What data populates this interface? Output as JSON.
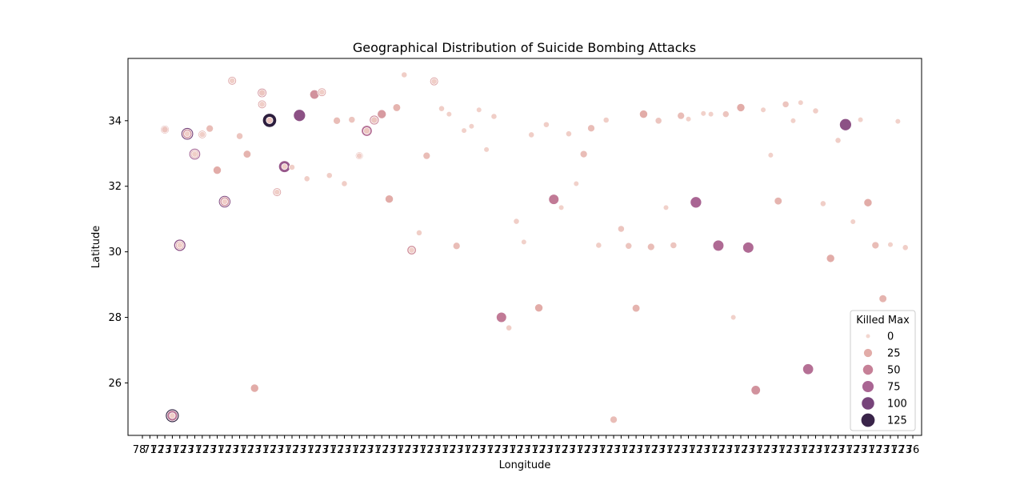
{
  "chart_data": {
    "type": "scatter",
    "title": "Geographical Distribution of Suicide Bombing Attacks",
    "xlabel": "Longitude",
    "ylabel": "Latitude",
    "ylim": [
      24.4,
      35.9
    ],
    "yticks": [
      26,
      28,
      30,
      32,
      34
    ],
    "x_axis": "categorical",
    "x_first_tick_label": "78",
    "x_last_tick_label": "76",
    "x_category_count": 104,
    "size_legend": {
      "title": "Killed Max",
      "entries": [
        {
          "label": "0",
          "value": 0
        },
        {
          "label": "25",
          "value": 25
        },
        {
          "label": "50",
          "value": 50
        },
        {
          "label": "75",
          "value": 75
        },
        {
          "label": "100",
          "value": 100
        },
        {
          "label": "125",
          "value": 125
        }
      ],
      "placement": "lower right"
    },
    "color_low": "#f3d6cf",
    "color_high": "#2d1e3e",
    "grid": false,
    "points": [
      {
        "x": 3,
        "y": 33.73,
        "k": 30
      },
      {
        "x": 3,
        "y": 33.73,
        "k": 10
      },
      {
        "x": 4,
        "y": 25.0,
        "k": 130
      },
      {
        "x": 4,
        "y": 25.0,
        "k": 60
      },
      {
        "x": 4,
        "y": 25.0,
        "k": 5
      },
      {
        "x": 5,
        "y": 30.2,
        "k": 90
      },
      {
        "x": 5,
        "y": 30.2,
        "k": 30
      },
      {
        "x": 5,
        "y": 30.2,
        "k": 5
      },
      {
        "x": 6,
        "y": 33.6,
        "k": 100
      },
      {
        "x": 6,
        "y": 33.6,
        "k": 40
      },
      {
        "x": 6,
        "y": 33.6,
        "k": 5
      },
      {
        "x": 7,
        "y": 32.98,
        "k": 80
      },
      {
        "x": 7,
        "y": 32.98,
        "k": 30
      },
      {
        "x": 7,
        "y": 32.98,
        "k": 5
      },
      {
        "x": 8,
        "y": 33.58,
        "k": 25
      },
      {
        "x": 8,
        "y": 33.58,
        "k": 5
      },
      {
        "x": 9,
        "y": 33.76,
        "k": 15
      },
      {
        "x": 10,
        "y": 32.49,
        "k": 25
      },
      {
        "x": 11,
        "y": 31.53,
        "k": 95
      },
      {
        "x": 11,
        "y": 31.53,
        "k": 40
      },
      {
        "x": 11,
        "y": 31.53,
        "k": 5
      },
      {
        "x": 12,
        "y": 35.22,
        "k": 30
      },
      {
        "x": 12,
        "y": 35.22,
        "k": 5
      },
      {
        "x": 13,
        "y": 33.53,
        "k": 10
      },
      {
        "x": 14,
        "y": 32.98,
        "k": 20
      },
      {
        "x": 15,
        "y": 25.84,
        "k": 25
      },
      {
        "x": 16,
        "y": 34.85,
        "k": 40
      },
      {
        "x": 16,
        "y": 34.85,
        "k": 10
      },
      {
        "x": 16,
        "y": 34.5,
        "k": 30
      },
      {
        "x": 16,
        "y": 34.5,
        "k": 5
      },
      {
        "x": 17,
        "y": 34.01,
        "k": 140
      },
      {
        "x": 17,
        "y": 34.01,
        "k": 10
      },
      {
        "x": 18,
        "y": 31.82,
        "k": 30
      },
      {
        "x": 18,
        "y": 31.82,
        "k": 5
      },
      {
        "x": 19,
        "y": 32.6,
        "k": 85
      },
      {
        "x": 19,
        "y": 32.6,
        "k": 5
      },
      {
        "x": 20,
        "y": 32.58,
        "k": 5
      },
      {
        "x": 21,
        "y": 34.16,
        "k": 90
      },
      {
        "x": 22,
        "y": 32.23,
        "k": 5
      },
      {
        "x": 23,
        "y": 34.8,
        "k": 40
      },
      {
        "x": 24,
        "y": 34.87,
        "k": 30
      },
      {
        "x": 24,
        "y": 34.87,
        "k": 5
      },
      {
        "x": 25,
        "y": 32.33,
        "k": 10
      },
      {
        "x": 25,
        "y": 32.33,
        "k": 5
      },
      {
        "x": 26,
        "y": 34.0,
        "k": 15
      },
      {
        "x": 27,
        "y": 32.08,
        "k": 5
      },
      {
        "x": 28,
        "y": 34.03,
        "k": 10
      },
      {
        "x": 29,
        "y": 32.93,
        "k": 20
      },
      {
        "x": 29,
        "y": 32.93,
        "k": 5
      },
      {
        "x": 30,
        "y": 33.69,
        "k": 65
      },
      {
        "x": 30,
        "y": 33.69,
        "k": 10
      },
      {
        "x": 31,
        "y": 34.02,
        "k": 45
      },
      {
        "x": 31,
        "y": 34.02,
        "k": 10
      },
      {
        "x": 32,
        "y": 34.2,
        "k": 35
      },
      {
        "x": 33,
        "y": 31.61,
        "k": 25
      },
      {
        "x": 34,
        "y": 34.4,
        "k": 20
      },
      {
        "x": 35,
        "y": 35.4,
        "k": 5
      },
      {
        "x": 36,
        "y": 30.05,
        "k": 40
      },
      {
        "x": 36,
        "y": 30.05,
        "k": 5
      },
      {
        "x": 37,
        "y": 30.58,
        "k": 5
      },
      {
        "x": 38,
        "y": 32.93,
        "k": 15
      },
      {
        "x": 39,
        "y": 35.2,
        "k": 30
      },
      {
        "x": 39,
        "y": 35.2,
        "k": 5
      },
      {
        "x": 40,
        "y": 34.37,
        "k": 5
      },
      {
        "x": 41,
        "y": 34.2,
        "k": 3
      },
      {
        "x": 42,
        "y": 30.18,
        "k": 15
      },
      {
        "x": 43,
        "y": 33.7,
        "k": 3
      },
      {
        "x": 44,
        "y": 33.83,
        "k": 3
      },
      {
        "x": 45,
        "y": 34.33,
        "k": 3
      },
      {
        "x": 46,
        "y": 33.12,
        "k": 3
      },
      {
        "x": 47,
        "y": 34.13,
        "k": 5
      },
      {
        "x": 48,
        "y": 28.0,
        "k": 55
      },
      {
        "x": 49,
        "y": 27.68,
        "k": 5
      },
      {
        "x": 50,
        "y": 30.93,
        "k": 5
      },
      {
        "x": 51,
        "y": 30.3,
        "k": 3
      },
      {
        "x": 52,
        "y": 33.57,
        "k": 5
      },
      {
        "x": 53,
        "y": 28.29,
        "k": 25
      },
      {
        "x": 54,
        "y": 33.88,
        "k": 5
      },
      {
        "x": 55,
        "y": 31.6,
        "k": 55
      },
      {
        "x": 56,
        "y": 31.35,
        "k": 3
      },
      {
        "x": 57,
        "y": 33.6,
        "k": 5
      },
      {
        "x": 58,
        "y": 32.08,
        "k": 3
      },
      {
        "x": 59,
        "y": 32.98,
        "k": 15
      },
      {
        "x": 60,
        "y": 33.77,
        "k": 15
      },
      {
        "x": 61,
        "y": 30.2,
        "k": 5
      },
      {
        "x": 62,
        "y": 34.02,
        "k": 5
      },
      {
        "x": 63,
        "y": 24.88,
        "k": 15
      },
      {
        "x": 64,
        "y": 30.7,
        "k": 10
      },
      {
        "x": 65,
        "y": 30.18,
        "k": 10
      },
      {
        "x": 66,
        "y": 28.28,
        "k": 20
      },
      {
        "x": 67,
        "y": 34.2,
        "k": 25
      },
      {
        "x": 68,
        "y": 30.15,
        "k": 15
      },
      {
        "x": 69,
        "y": 34.0,
        "k": 10
      },
      {
        "x": 70,
        "y": 31.35,
        "k": 3
      },
      {
        "x": 71,
        "y": 30.2,
        "k": 10
      },
      {
        "x": 72,
        "y": 34.15,
        "k": 15
      },
      {
        "x": 73,
        "y": 34.05,
        "k": 3
      },
      {
        "x": 74,
        "y": 31.51,
        "k": 75
      },
      {
        "x": 75,
        "y": 34.22,
        "k": 3
      },
      {
        "x": 76,
        "y": 34.2,
        "k": 3
      },
      {
        "x": 77,
        "y": 30.19,
        "k": 70
      },
      {
        "x": 78,
        "y": 34.2,
        "k": 10
      },
      {
        "x": 79,
        "y": 28.0,
        "k": 3
      },
      {
        "x": 80,
        "y": 34.4,
        "k": 25
      },
      {
        "x": 81,
        "y": 30.13,
        "k": 70
      },
      {
        "x": 82,
        "y": 25.78,
        "k": 40
      },
      {
        "x": 83,
        "y": 34.33,
        "k": 3
      },
      {
        "x": 84,
        "y": 32.95,
        "k": 3
      },
      {
        "x": 85,
        "y": 31.55,
        "k": 20
      },
      {
        "x": 86,
        "y": 34.5,
        "k": 10
      },
      {
        "x": 87,
        "y": 34.0,
        "k": 3
      },
      {
        "x": 88,
        "y": 34.55,
        "k": 3
      },
      {
        "x": 89,
        "y": 26.42,
        "k": 65
      },
      {
        "x": 90,
        "y": 34.3,
        "k": 5
      },
      {
        "x": 91,
        "y": 31.47,
        "k": 5
      },
      {
        "x": 92,
        "y": 29.8,
        "k": 25
      },
      {
        "x": 93,
        "y": 33.4,
        "k": 5
      },
      {
        "x": 94,
        "y": 33.88,
        "k": 90
      },
      {
        "x": 95,
        "y": 30.92,
        "k": 3
      },
      {
        "x": 96,
        "y": 34.03,
        "k": 3
      },
      {
        "x": 97,
        "y": 31.5,
        "k": 25
      },
      {
        "x": 98,
        "y": 30.2,
        "k": 15
      },
      {
        "x": 99,
        "y": 28.57,
        "k": 20
      },
      {
        "x": 100,
        "y": 30.22,
        "k": 3
      },
      {
        "x": 101,
        "y": 33.98,
        "k": 3
      },
      {
        "x": 102,
        "y": 30.13,
        "k": 5
      }
    ]
  }
}
